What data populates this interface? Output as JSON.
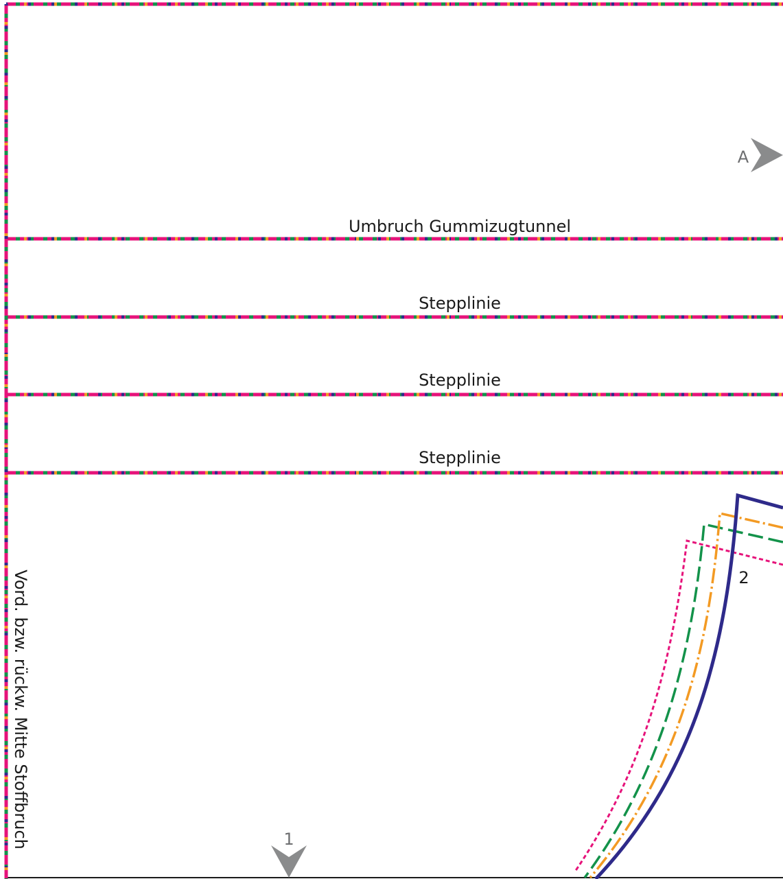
{
  "colors": {
    "size_line_navy": "#2e2a8a",
    "size_line_orange": "#f39a23",
    "size_line_green": "#13924a",
    "size_line_magenta": "#e6137a",
    "marker_grey": "#8a8b8c",
    "outline_black": "#1a1a1a"
  },
  "labels": {
    "fold_line": "Umbruch Gummizugtunnel",
    "stitch_line_1": "Stepplinie",
    "stitch_line_2": "Stepplinie",
    "stitch_line_3": "Stepplinie",
    "center_fold": "Vord. bzw. rückw. Mitte Stoffbruch",
    "marker_a": "A",
    "marker_1": "1",
    "marker_2": "2"
  },
  "icons": {
    "marker_a": "notch-arrow-right-icon",
    "marker_1": "notch-arrow-down-icon"
  }
}
